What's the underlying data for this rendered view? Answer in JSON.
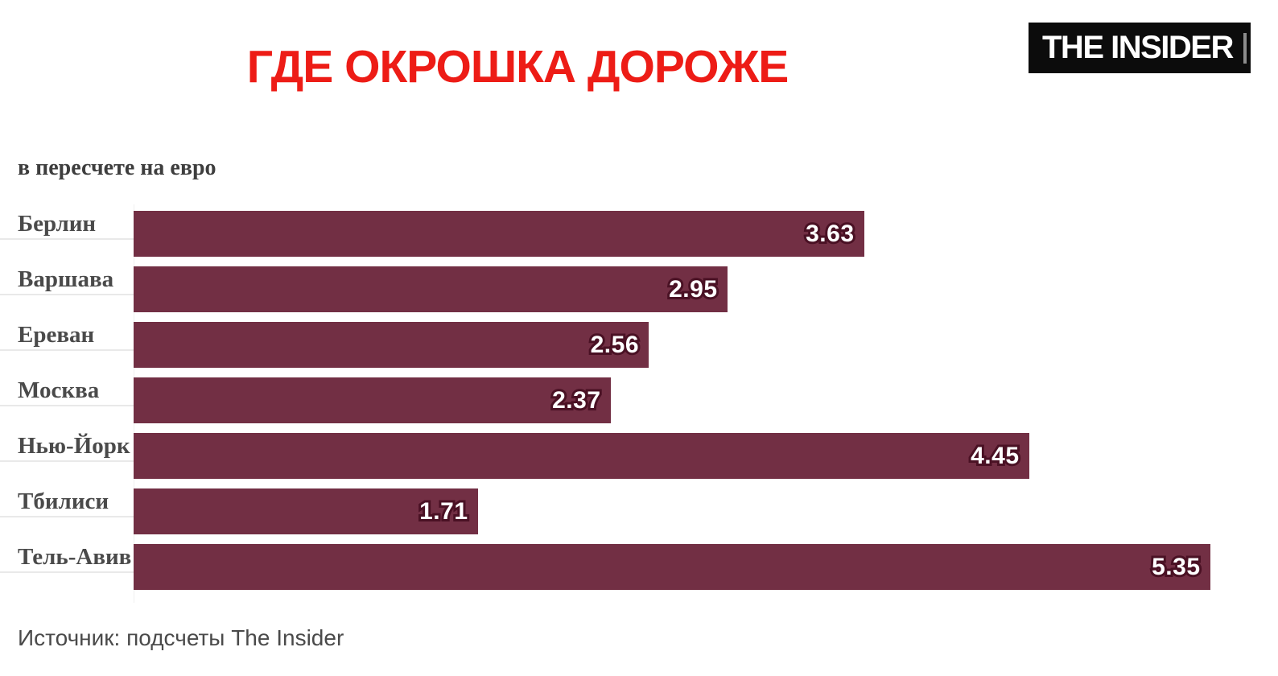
{
  "header": {
    "title": "ГДЕ ОКРОШКА ДОРОЖЕ",
    "logo_text": "THE INSIDER"
  },
  "subtitle": "в пересчете на евро",
  "source": "Источник: подсчеты The Insider",
  "colors": {
    "bar": "#722f44",
    "title_red": "#ed1c16",
    "value_outline": "#4a1124",
    "label_gray": "#4a4a4a"
  },
  "chart_data": {
    "type": "bar",
    "orientation": "horizontal",
    "title": "ГДЕ ОКРОШКА ДОРОЖЕ",
    "subtitle": "в пересчете на евро",
    "categories": [
      "Берлин",
      "Варшава",
      "Ереван",
      "Москва",
      "Нью-Йорк",
      "Тбилиси",
      "Тель-Авив"
    ],
    "values": [
      3.63,
      2.95,
      2.56,
      2.37,
      4.45,
      1.71,
      5.35
    ],
    "value_labels": [
      "3.63",
      "2.95",
      "2.56",
      "2.37",
      "4.45",
      "1.71",
      "5.35"
    ],
    "unit": "евро",
    "xlim": [
      0,
      5.69
    ],
    "grid": false,
    "legend": false,
    "source": "Источник: подсчеты The Insider"
  }
}
